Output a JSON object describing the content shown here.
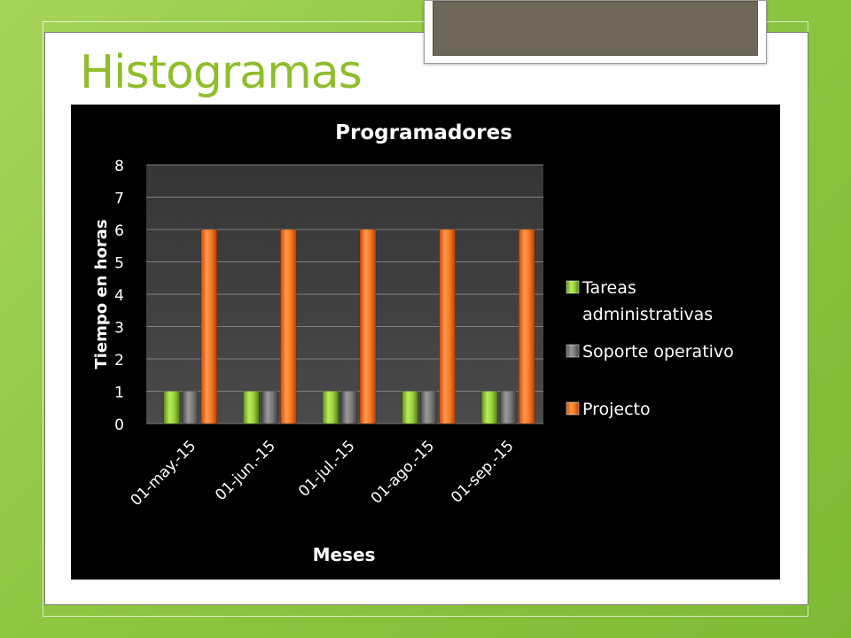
{
  "slide": {
    "title": "Histogramas"
  },
  "chart_data": {
    "type": "bar",
    "title": "Programadores",
    "xlabel": "Meses",
    "ylabel": "Tiempo en horas",
    "categories": [
      "01-may.-15",
      "01-jun.-15",
      "01-jul.-15",
      "01-ago.-15",
      "01-sep.-15"
    ],
    "series": [
      {
        "name": "Tareas administrativas",
        "values": [
          1,
          1,
          1,
          1,
          1
        ],
        "color": "#8cc63f"
      },
      {
        "name": "Soporte operativo",
        "values": [
          1,
          1,
          1,
          1,
          1
        ],
        "color": "#6b6b6b"
      },
      {
        "name": "Projecto",
        "values": [
          6,
          6,
          6,
          6,
          6
        ],
        "color": "#f26b1d"
      }
    ],
    "ylim": [
      0,
      8
    ],
    "yticks": [
      "0",
      "1",
      "2",
      "3",
      "4",
      "5",
      "6",
      "7",
      "8"
    ],
    "grid": true,
    "legend": "right"
  }
}
